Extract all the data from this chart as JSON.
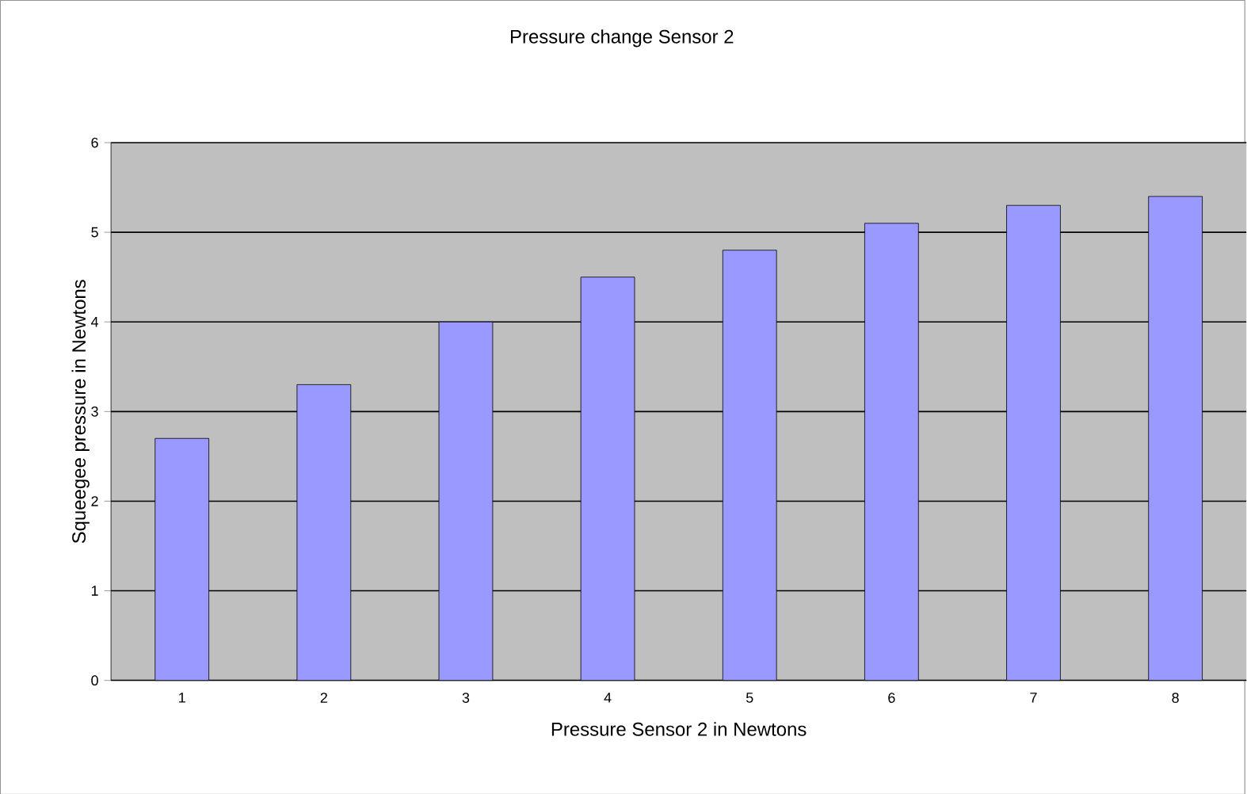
{
  "chart_data": {
    "type": "bar",
    "title": "Pressure change Sensor 2",
    "xlabel": "Pressure Sensor 2 in Newtons",
    "ylabel": "Squeegee pressure in Newtons",
    "categories": [
      "1",
      "2",
      "3",
      "4",
      "5",
      "6",
      "7",
      "8"
    ],
    "values": [
      2.7,
      3.3,
      4.0,
      4.5,
      4.8,
      5.1,
      5.3,
      5.4
    ],
    "color": "#9999ff",
    "ylim": [
      0,
      6
    ],
    "yticks": [
      0,
      1,
      2,
      3,
      4,
      5,
      6
    ],
    "grid": "y"
  }
}
